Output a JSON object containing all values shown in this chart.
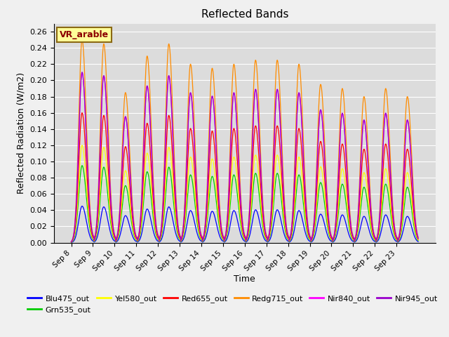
{
  "title": "Reflected Bands",
  "xlabel": "Time",
  "ylabel": "Reflected Radiation (W/m2)",
  "ylim": [
    0.0,
    0.27
  ],
  "yticks": [
    0.0,
    0.02,
    0.04,
    0.06,
    0.08,
    0.1,
    0.12,
    0.14,
    0.16,
    0.18,
    0.2,
    0.22,
    0.24,
    0.26
  ],
  "n_days": 16,
  "annotation_text": "VR_arable",
  "annotation_color": "#8B0000",
  "annotation_bg": "#FFFF99",
  "annotation_border": "#8B6914",
  "bands": [
    {
      "name": "Blu475_out",
      "color": "#0000FF",
      "rel_scale": 0.18
    },
    {
      "name": "Grn535_out",
      "color": "#00CC00",
      "rel_scale": 0.38
    },
    {
      "name": "Yel580_out",
      "color": "#FFFF00",
      "rel_scale": 0.48
    },
    {
      "name": "Red655_out",
      "color": "#FF0000",
      "rel_scale": 0.64
    },
    {
      "name": "Redg715_out",
      "color": "#FF8C00",
      "rel_scale": 1.0
    },
    {
      "name": "Nir840_out",
      "color": "#FF00FF",
      "rel_scale": 0.84
    },
    {
      "name": "Nir945_out",
      "color": "#9900CC",
      "rel_scale": 0.84
    }
  ],
  "legend_order": [
    0,
    1,
    2,
    3,
    4,
    5,
    6
  ],
  "legend_ncol": 6,
  "bg_color": "#DCDCDC",
  "grid_color": "#FFFFFF",
  "fig_bg": "#F0F0F0",
  "orange_peaks": [
    0.25,
    0.245,
    0.185,
    0.23,
    0.245,
    0.22,
    0.215,
    0.22,
    0.225,
    0.225,
    0.22,
    0.195,
    0.19,
    0.18,
    0.19,
    0.18
  ],
  "day_labels": [
    "Sep 8",
    "Sep 9",
    "Sep 10",
    "Sep 11",
    "Sep 12",
    "Sep 13",
    "Sep 14",
    "Sep 15",
    "Sep 16",
    "Sep 17",
    "Sep 18",
    "Sep 19",
    "Sep 20",
    "Sep 21",
    "Sep 22",
    "Sep 23"
  ]
}
